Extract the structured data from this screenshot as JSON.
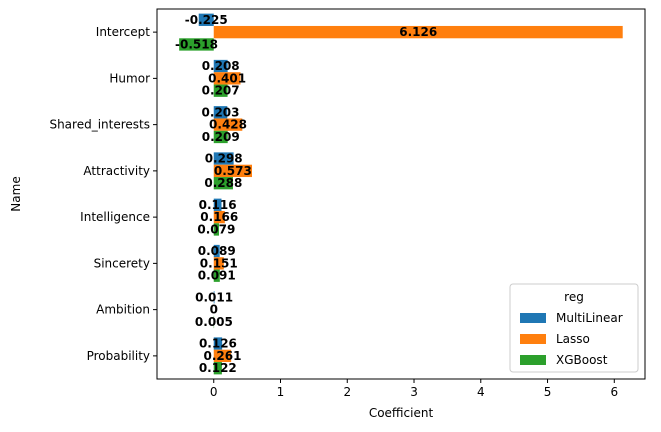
{
  "chart_data": {
    "type": "bar",
    "orientation": "horizontal",
    "categories": [
      "Intercept",
      "Humor",
      "Shared_interests",
      "Attractivity",
      "Intelligence",
      "Sincerety",
      "Ambition",
      "Probability"
    ],
    "series": [
      {
        "name": "MultiLinear",
        "color": "#1f77b4",
        "values": [
          -0.225,
          0.208,
          0.203,
          0.298,
          0.116,
          0.089,
          0.011,
          0.126
        ],
        "labels": [
          "-0.225",
          "0.208",
          "0.203",
          "0.298",
          "0.116",
          "0.089",
          "0.011",
          "0.126"
        ]
      },
      {
        "name": "Lasso",
        "color": "#ff7f0e",
        "values": [
          6.126,
          0.401,
          0.428,
          0.573,
          0.166,
          0.151,
          0,
          0.261
        ],
        "labels": [
          "6.126",
          "0.401",
          "0.428",
          "0.573",
          "0.166",
          "0.151",
          "0",
          "0.261"
        ]
      },
      {
        "name": "XGBoost",
        "color": "#2ca02c",
        "values": [
          -0.518,
          0.207,
          0.209,
          0.288,
          0.079,
          0.091,
          0.005,
          0.122
        ],
        "labels": [
          "-0.518",
          "0.207",
          "0.209",
          "0.288",
          "0.079",
          "0.091",
          "0.005",
          "0.122"
        ]
      }
    ],
    "xlabel": "Coefficient",
    "ylabel": "Name",
    "xlim": [
      -0.85,
      6.46
    ],
    "xticks": [
      0,
      1,
      2,
      3,
      4,
      5,
      6
    ],
    "legend": {
      "title": "reg",
      "placement": "lower-right"
    },
    "grid": false
  }
}
